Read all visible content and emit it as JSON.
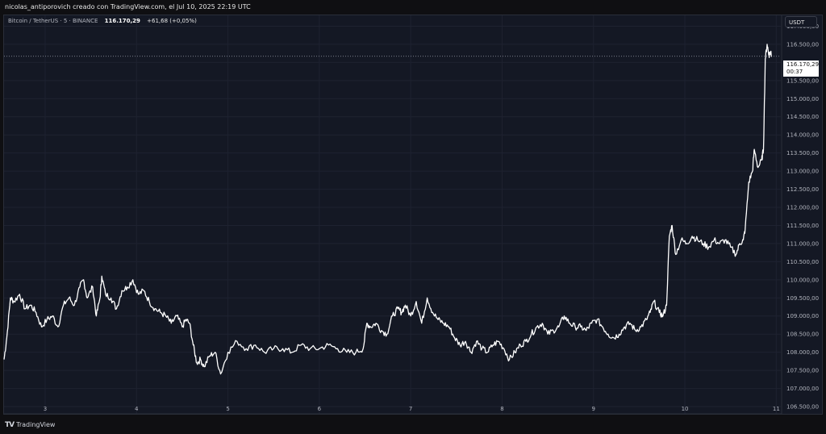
{
  "header": {
    "attribution": "nicolas_antiporovich creado con TradingView.com, el Jul 10, 2025 22:19 UTC"
  },
  "legend": {
    "symbol": "Bitcoin / TetherUS · 5 · BINANCE",
    "price": "116.170,29",
    "change": "+61,68 (+0,05%)"
  },
  "price_axis": {
    "currency": "USDT",
    "current_price": "116.170,29",
    "countdown": "00:37"
  },
  "footer": {
    "logo_text": "TradingView"
  },
  "colors": {
    "background": "#141824",
    "grid": "#1e2230",
    "line": "#ffffff",
    "price_line": "#9aa0ab"
  },
  "chart_data": {
    "type": "line",
    "title": "",
    "xlabel": "",
    "ylabel": "",
    "x_ticks": [
      "3",
      "4",
      "5",
      "6",
      "7",
      "8",
      "9",
      "10",
      "11"
    ],
    "x_tick_values": [
      3,
      4,
      5,
      6,
      7,
      8,
      9,
      10,
      11
    ],
    "y_ticks": [
      106500,
      107000,
      107500,
      108000,
      108500,
      109000,
      109500,
      110000,
      110500,
      111000,
      111500,
      112000,
      112500,
      113000,
      113500,
      114000,
      114500,
      115000,
      115500,
      116000,
      116500,
      117000
    ],
    "y_tick_labels": [
      "106.500,00",
      "107.000,00",
      "107.500,00",
      "108.000,00",
      "108.500,00",
      "109.000,00",
      "109.500,00",
      "110.000,00",
      "110.500,00",
      "111.000,00",
      "111.500,00",
      "112.000,00",
      "112.500,00",
      "113.000,00",
      "113.500,00",
      "114.000,00",
      "114.500,00",
      "115.000,00",
      "115.500,00",
      "116.000,00",
      "116.500,00",
      "117.000,00"
    ],
    "ylim": [
      106300,
      117300
    ],
    "xlim": [
      2.55,
      11.05
    ],
    "grid": true,
    "series": [
      {
        "x": [
          2.55,
          2.58,
          2.62,
          2.66,
          2.72,
          2.78,
          2.84,
          2.9,
          2.96,
          3.02,
          3.08,
          3.14,
          3.2,
          3.26,
          3.32,
          3.38,
          3.42,
          3.46,
          3.52,
          3.56,
          3.6,
          3.62,
          3.66,
          3.72,
          3.78,
          3.84,
          3.9,
          3.96,
          4.02,
          4.08,
          4.14,
          4.2,
          4.26,
          4.32,
          4.38,
          4.44,
          4.5,
          4.54,
          4.58,
          4.62,
          4.66,
          4.7,
          4.74,
          4.8,
          4.86,
          4.92,
          5.0,
          5.1,
          5.2,
          5.3,
          5.4,
          5.5,
          5.6,
          5.7,
          5.8,
          5.9,
          6.0,
          6.1,
          6.2,
          6.3,
          6.4,
          6.48,
          6.52,
          6.56,
          6.62,
          6.68,
          6.74,
          6.8,
          6.86,
          6.9,
          6.94,
          7.0,
          7.06,
          7.12,
          7.18,
          7.24,
          7.3,
          7.36,
          7.42,
          7.48,
          7.54,
          7.6,
          7.66,
          7.72,
          7.78,
          7.84,
          7.9,
          7.96,
          8.02,
          8.08,
          8.14,
          8.2,
          8.26,
          8.32,
          8.38,
          8.44,
          8.5,
          8.56,
          8.62,
          8.68,
          8.74,
          8.8,
          8.86,
          8.92,
          8.98,
          9.04,
          9.1,
          9.16,
          9.22,
          9.28,
          9.34,
          9.4,
          9.46,
          9.52,
          9.58,
          9.62,
          9.66,
          9.72,
          9.76,
          9.8,
          9.83,
          9.86,
          9.9,
          9.96,
          10.02,
          10.08,
          10.14,
          10.2,
          10.26,
          10.32,
          10.38,
          10.44,
          10.5,
          10.56,
          10.6,
          10.64,
          10.66,
          10.7,
          10.74,
          10.76,
          10.8,
          10.84,
          10.86,
          10.88,
          10.9,
          10.92,
          10.94,
          10.95
        ],
        "y": [
          107800,
          108400,
          109500,
          109400,
          109600,
          109200,
          109300,
          109100,
          108700,
          108900,
          109000,
          108700,
          109300,
          109500,
          109300,
          109800,
          110000,
          109500,
          109800,
          109000,
          109500,
          110100,
          109600,
          109500,
          109200,
          109700,
          109800,
          110000,
          109600,
          109700,
          109400,
          109200,
          109100,
          109000,
          108800,
          109000,
          108700,
          108900,
          108800,
          108200,
          107700,
          107800,
          107600,
          107900,
          108000,
          107400,
          108000,
          108300,
          108100,
          108200,
          108000,
          108100,
          108100,
          108000,
          108200,
          108100,
          108100,
          108200,
          108100,
          108000,
          108000,
          108100,
          108800,
          108700,
          108800,
          108600,
          108500,
          109000,
          109200,
          109100,
          109300,
          109000,
          109400,
          108800,
          109500,
          109100,
          108900,
          108800,
          108700,
          108400,
          108200,
          108300,
          108000,
          108300,
          108100,
          108000,
          108200,
          108300,
          108100,
          107800,
          108000,
          108200,
          108300,
          108500,
          108700,
          108800,
          108500,
          108600,
          108700,
          109000,
          108800,
          108700,
          108700,
          108600,
          108800,
          108900,
          108700,
          108500,
          108400,
          108500,
          108700,
          108800,
          108600,
          108700,
          108900,
          109100,
          109400,
          109100,
          109000,
          109300,
          111200,
          111500,
          110700,
          111100,
          111000,
          111200,
          111100,
          111000,
          110900,
          111100,
          111000,
          111100,
          110900,
          110700,
          111000,
          111100,
          111400,
          112700,
          113000,
          113600,
          113100,
          113300,
          113600,
          116100,
          116500,
          116200,
          116300,
          116170
        ]
      }
    ]
  }
}
